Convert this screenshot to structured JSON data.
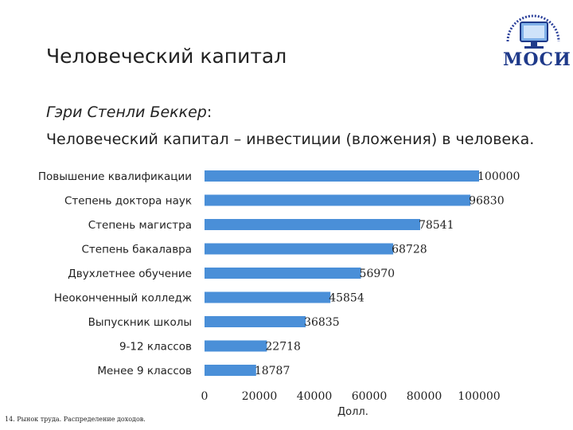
{
  "slide": {
    "title": "Человеческий капитал",
    "author": "Гэри Стенли Беккер",
    "author_suffix": ":",
    "definition": "Человеческий капитал – инвестиции (вложения) в человека.",
    "footer": "14. Рынок труда. Распределение доходов.",
    "logo_text": "МОСИ",
    "logo_icon": "computer-monitor-logo-icon"
  },
  "chart_data": {
    "type": "bar",
    "orientation": "horizontal",
    "categories": [
      "Повышение квалификации",
      "Степень доктора наук",
      "Степень магистра",
      "Степень бакалавра",
      "Двухлетнее обучение",
      "Неоконченный колледж",
      "Выпускник школы",
      "9-12 классов",
      "Менее 9 классов"
    ],
    "values": [
      100000,
      96830,
      78541,
      68728,
      56970,
      45854,
      36835,
      22718,
      18787
    ],
    "value_labels": [
      "100000",
      "96830",
      "78541",
      "68728",
      "56970",
      "45854",
      "36835",
      "22718",
      "18787"
    ],
    "xlim": [
      0,
      100000
    ],
    "x_ticks": [
      "0",
      "20000",
      "40000",
      "60000",
      "80000",
      "100000"
    ],
    "xlabel": "Долл.",
    "grid": false,
    "bar_color": "#4a8fd8"
  }
}
